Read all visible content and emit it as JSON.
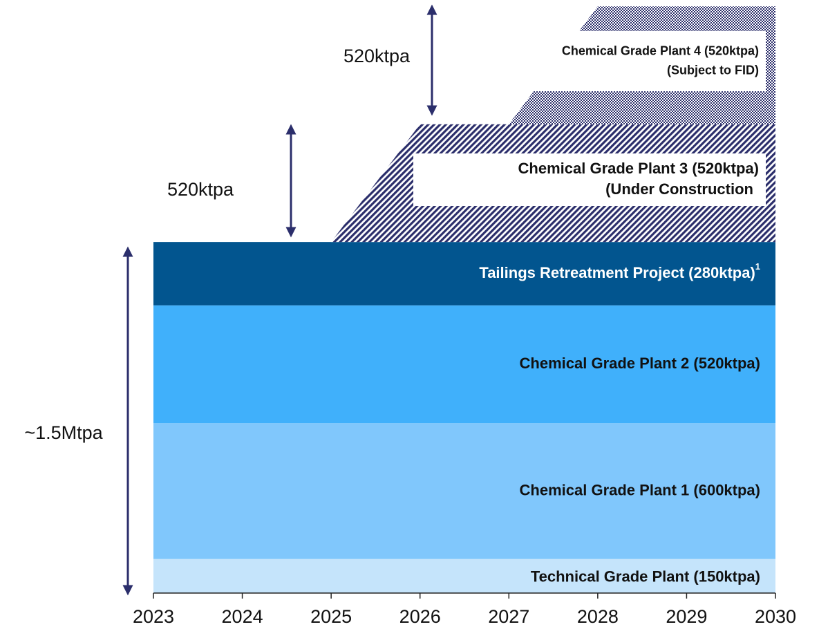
{
  "chart_data": {
    "type": "stacked_area",
    "x": [
      2023,
      2024,
      2025,
      2026,
      2027,
      2028,
      2029,
      2030
    ],
    "xlim": [
      2023,
      2030
    ],
    "xticks": [
      2023,
      2024,
      2025,
      2026,
      2027,
      2028,
      2029,
      2030
    ],
    "ylim": [
      0,
      2600
    ],
    "series": [
      {
        "name": "Technical Grade Plant (150ktpa)",
        "color": "#c5e4fb",
        "text_color": "#111111",
        "values": [
          150,
          150,
          150,
          150,
          150,
          150,
          150,
          150
        ]
      },
      {
        "name": "Chemical Grade Plant 1 (600ktpa)",
        "color": "#80c7fc",
        "text_color": "#111111",
        "values": [
          600,
          600,
          600,
          600,
          600,
          600,
          600,
          600
        ]
      },
      {
        "name": "Chemical Grade Plant 2 (520ktpa)",
        "color": "#40b0fb",
        "text_color": "#111111",
        "values": [
          520,
          520,
          520,
          520,
          520,
          520,
          520,
          520
        ]
      },
      {
        "name": "Tailings Retreatment Project (280ktpa)",
        "footnote_mark": "1",
        "color": "#02558f",
        "text_color": "#ffffff",
        "values": [
          280,
          280,
          280,
          280,
          280,
          280,
          280,
          280
        ]
      },
      {
        "name": "Chemical Grade Plant 3 (520ktpa)",
        "status": "(Under Construction",
        "color": "#2b2e6b",
        "pattern": "diagonal",
        "text_color": "#111111",
        "values": [
          0,
          0,
          0,
          520,
          520,
          520,
          520,
          520
        ]
      },
      {
        "name": "Chemical Grade Plant 4 (520ktpa)",
        "status": "(Subject to FID)",
        "color": "#2b2e6b",
        "pattern": "checker",
        "text_color": "#111111",
        "values": [
          0,
          0,
          0,
          0,
          0,
          520,
          520,
          520
        ]
      }
    ],
    "annotations": [
      "520ktpa",
      "520ktpa",
      "~1.5Mtpa"
    ]
  }
}
